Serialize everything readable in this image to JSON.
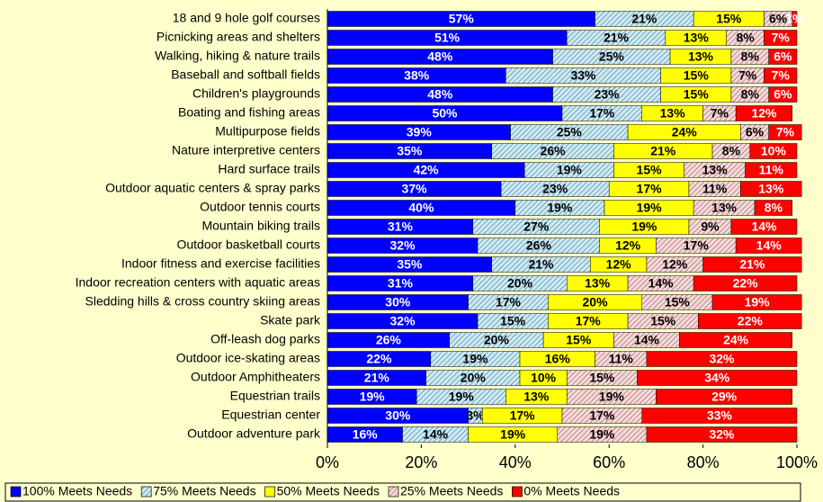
{
  "chart_data": {
    "type": "stacked_barh",
    "categories": [
      "18 and 9 hole golf courses",
      "Picnicking areas and shelters",
      "Walking, hiking & nature trails",
      "Baseball and softball fields",
      "Children's playgrounds",
      "Boating and fishing areas",
      "Multipurpose fields",
      "Nature interpretive centers",
      "Hard surface trails",
      "Outdoor aquatic centers & spray parks",
      "Outdoor tennis courts",
      "Mountain biking trails",
      "Outdoor basketball courts",
      "Indoor fitness and exercise facilities",
      "Indoor recreation centers with aquatic areas",
      "Sledding hills & cross country skiing areas",
      "Skate park",
      "Off-leash dog parks",
      "Outdoor ice-skating areas",
      "Outdoor Amphitheaters",
      "Equestrian trails",
      "Equestrian center",
      "Outdoor adventure park"
    ],
    "series": [
      {
        "name": "100% Meets Needs",
        "color": "#0000ff",
        "hatch": false,
        "label_color": "#ffffff",
        "values": [
          57,
          51,
          48,
          38,
          48,
          50,
          39,
          35,
          42,
          37,
          40,
          31,
          32,
          35,
          31,
          30,
          32,
          26,
          22,
          21,
          19,
          30,
          16
        ],
        "value_labels": [
          "57%",
          "51%",
          "48%",
          "38%",
          "48%",
          "50%",
          "39%",
          "35%",
          "42%",
          "37%",
          "40%",
          "31%",
          "32%",
          "35%",
          "31%",
          "30%",
          "32%",
          "26%",
          "22%",
          "21%",
          "19%",
          "30%",
          "16%"
        ]
      },
      {
        "name": "75% Meets Needs",
        "color": "#c6ecfa",
        "hatch": true,
        "label_color": "#000000",
        "values": [
          21,
          21,
          25,
          33,
          23,
          17,
          25,
          26,
          19,
          23,
          19,
          27,
          26,
          21,
          20,
          17,
          15,
          20,
          19,
          20,
          19,
          3,
          14
        ],
        "value_labels": [
          "21%",
          "21%",
          "25%",
          "33%",
          "23%",
          "17%",
          "25%",
          "26%",
          "19%",
          "23%",
          "19%",
          "27%",
          "26%",
          "21%",
          "20%",
          "17%",
          "15%",
          "20%",
          "19%",
          "20%",
          "19%",
          "3%",
          "14%"
        ]
      },
      {
        "name": "50% Meets Needs",
        "color": "#ffff00",
        "hatch": false,
        "label_color": "#000000",
        "values": [
          15,
          13,
          13,
          15,
          15,
          13,
          24,
          21,
          15,
          17,
          19,
          19,
          12,
          12,
          13,
          20,
          17,
          15,
          16,
          10,
          13,
          17,
          19
        ],
        "value_labels": [
          "15%",
          "13%",
          "13%",
          "15%",
          "15%",
          "13%",
          "24%",
          "21%",
          "15%",
          "17%",
          "19%",
          "19%",
          "12%",
          "12%",
          "13%",
          "20%",
          "17%",
          "15%",
          "16%",
          "10%",
          "13%",
          "17%",
          "19%"
        ]
      },
      {
        "name": "25% Meets Needs",
        "color": "#ffd6d6",
        "hatch": true,
        "label_color": "#000000",
        "values": [
          6,
          8,
          8,
          7,
          8,
          7,
          6,
          8,
          13,
          11,
          13,
          9,
          17,
          12,
          14,
          15,
          15,
          14,
          11,
          15,
          19,
          17,
          19
        ],
        "value_labels": [
          "6%",
          "8%",
          "8%",
          "7%",
          "8%",
          "7%",
          "6%",
          "8%",
          "13%",
          "11%",
          "13%",
          "9%",
          "17%",
          "12%",
          "14%",
          "15%",
          "15%",
          "14%",
          "11%",
          "15%",
          "19%",
          "17%",
          "19%"
        ]
      },
      {
        "name": "0% Meets Needs",
        "color": "#ff0000",
        "hatch": false,
        "label_color": "#ffffff",
        "values": [
          1,
          7,
          6,
          7,
          6,
          12,
          7,
          10,
          11,
          13,
          8,
          14,
          14,
          21,
          22,
          19,
          22,
          24,
          32,
          34,
          29,
          33,
          32
        ],
        "value_labels": [
          "1%",
          "7%",
          "6%",
          "7%",
          "6%",
          "12%",
          "7%",
          "10%",
          "11%",
          "13%",
          "8%",
          "14%",
          "14%",
          "21%",
          "22%",
          "19%",
          "22%",
          "24%",
          "32%",
          "34%",
          "29%",
          "33%",
          "32%"
        ]
      }
    ],
    "xlim": [
      0,
      100
    ],
    "xticks": [
      {
        "value": 0,
        "label": "0%"
      },
      {
        "value": 20,
        "label": "20%"
      },
      {
        "value": 40,
        "label": "40%"
      },
      {
        "value": 60,
        "label": "60%"
      },
      {
        "value": 80,
        "label": "80%"
      },
      {
        "value": 100,
        "label": "100%"
      }
    ],
    "legend": "bottom"
  }
}
